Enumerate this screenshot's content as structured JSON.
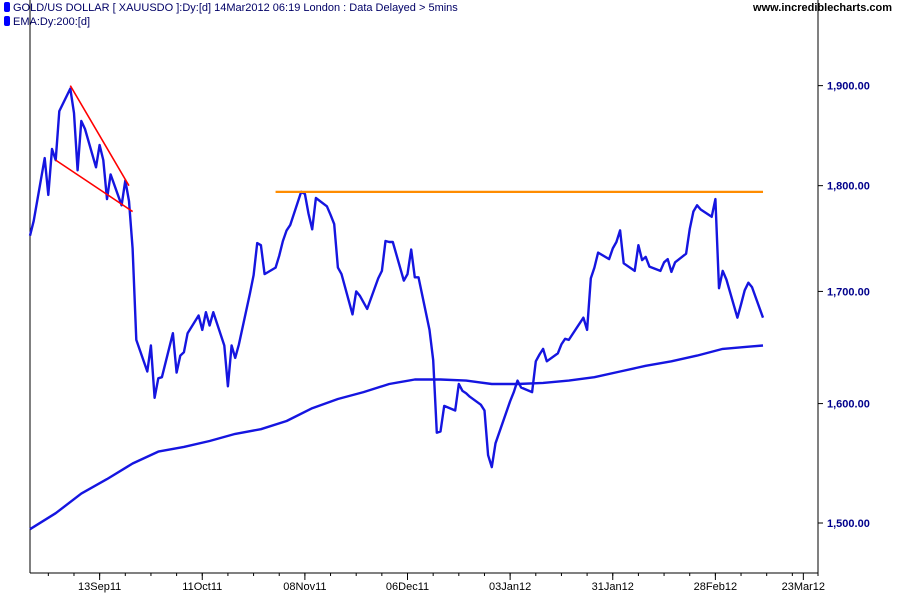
{
  "header": {
    "legend_price": "GOLD/US DOLLAR [ XAUUSDO ]:Dy:[d]  14Mar2012 06:19 London : Data Delayed > 5mins",
    "legend_ema": "EMA:Dy:200:[d]",
    "watermark": "www.incrediblecharts.com"
  },
  "colors": {
    "price": "#1515e0",
    "ema": "#1515e0",
    "trend": "#ff0000",
    "resistance": "#ff8c00",
    "axis": "#000000",
    "ylabel": "#00008b"
  },
  "chart_data": {
    "type": "line",
    "title": "",
    "xlabel": "",
    "ylabel": "",
    "grid": false,
    "legend": "top-left",
    "y_scale": "log",
    "x_range": [
      "2011-08-25",
      "2012-03-27"
    ],
    "ylim": [
      1460,
      1990
    ],
    "x_ticks": [
      {
        "date": "2011-09-13",
        "label": "13Sep11"
      },
      {
        "date": "2011-10-11",
        "label": "11Oct11"
      },
      {
        "date": "2011-11-08",
        "label": "08Nov11"
      },
      {
        "date": "2011-12-06",
        "label": "06Dec11"
      },
      {
        "date": "2012-01-03",
        "label": "03Jan12"
      },
      {
        "date": "2012-01-31",
        "label": "31Jan12"
      },
      {
        "date": "2012-02-28",
        "label": "28Feb12"
      },
      {
        "date": "2012-03-23",
        "label": "23Mar12"
      }
    ],
    "y_ticks": [
      {
        "value": 1500,
        "label": "1,500.00"
      },
      {
        "value": 1600,
        "label": "1,600.00"
      },
      {
        "value": 1700,
        "label": "1,700.00"
      },
      {
        "value": 1800,
        "label": "1,800.00"
      },
      {
        "value": 1900,
        "label": "1,900.00"
      }
    ],
    "series": [
      {
        "name": "GOLD/US DOLLAR [ XAUUSDO ]",
        "points": [
          [
            "2011-08-25",
            1752
          ],
          [
            "2011-08-26",
            1766
          ],
          [
            "2011-08-29",
            1827
          ],
          [
            "2011-08-30",
            1791
          ],
          [
            "2011-08-31",
            1836
          ],
          [
            "2011-09-01",
            1825
          ],
          [
            "2011-09-02",
            1874
          ],
          [
            "2011-09-05",
            1897
          ],
          [
            "2011-09-06",
            1872
          ],
          [
            "2011-09-07",
            1815
          ],
          [
            "2011-09-08",
            1864
          ],
          [
            "2011-09-09",
            1856
          ],
          [
            "2011-09-12",
            1818
          ],
          [
            "2011-09-13",
            1840
          ],
          [
            "2011-09-14",
            1825
          ],
          [
            "2011-09-15",
            1787
          ],
          [
            "2011-09-16",
            1811
          ],
          [
            "2011-09-19",
            1781
          ],
          [
            "2011-09-20",
            1805
          ],
          [
            "2011-09-21",
            1785
          ],
          [
            "2011-09-22",
            1740
          ],
          [
            "2011-09-23",
            1656
          ],
          [
            "2011-09-26",
            1628
          ],
          [
            "2011-09-27",
            1651
          ],
          [
            "2011-09-28",
            1605
          ],
          [
            "2011-09-29",
            1622
          ],
          [
            "2011-09-30",
            1623
          ],
          [
            "2011-10-03",
            1662
          ],
          [
            "2011-10-04",
            1627
          ],
          [
            "2011-10-05",
            1642
          ],
          [
            "2011-10-06",
            1645
          ],
          [
            "2011-10-07",
            1662
          ],
          [
            "2011-10-10",
            1678
          ],
          [
            "2011-10-11",
            1665
          ],
          [
            "2011-10-12",
            1681
          ],
          [
            "2011-10-13",
            1669
          ],
          [
            "2011-10-14",
            1681
          ],
          [
            "2011-10-17",
            1651
          ],
          [
            "2011-10-18",
            1615
          ],
          [
            "2011-10-19",
            1651
          ],
          [
            "2011-10-20",
            1640
          ],
          [
            "2011-10-21",
            1652
          ],
          [
            "2011-10-24",
            1698
          ],
          [
            "2011-10-25",
            1715
          ],
          [
            "2011-10-26",
            1745
          ],
          [
            "2011-10-27",
            1743
          ],
          [
            "2011-10-28",
            1716
          ],
          [
            "2011-10-31",
            1722
          ],
          [
            "2011-11-01",
            1733
          ],
          [
            "2011-11-02",
            1747
          ],
          [
            "2011-11-03",
            1757
          ],
          [
            "2011-11-04",
            1762
          ],
          [
            "2011-11-07",
            1794
          ],
          [
            "2011-11-08",
            1792
          ],
          [
            "2011-11-09",
            1773
          ],
          [
            "2011-11-10",
            1758
          ],
          [
            "2011-11-11",
            1788
          ],
          [
            "2011-11-14",
            1780
          ],
          [
            "2011-11-15",
            1772
          ],
          [
            "2011-11-16",
            1763
          ],
          [
            "2011-11-17",
            1722
          ],
          [
            "2011-11-18",
            1716
          ],
          [
            "2011-11-21",
            1679
          ],
          [
            "2011-11-22",
            1700
          ],
          [
            "2011-11-23",
            1696
          ],
          [
            "2011-11-24",
            1690
          ],
          [
            "2011-11-25",
            1684
          ],
          [
            "2011-11-28",
            1712
          ],
          [
            "2011-11-29",
            1719
          ],
          [
            "2011-11-30",
            1747
          ],
          [
            "2011-12-01",
            1746
          ],
          [
            "2011-12-02",
            1746
          ],
          [
            "2011-12-05",
            1710
          ],
          [
            "2011-12-06",
            1716
          ],
          [
            "2011-12-07",
            1739
          ],
          [
            "2011-12-08",
            1713
          ],
          [
            "2011-12-09",
            1713
          ],
          [
            "2011-12-12",
            1665
          ],
          [
            "2011-12-13",
            1638
          ],
          [
            "2011-12-14",
            1575
          ],
          [
            "2011-12-15",
            1576
          ],
          [
            "2011-12-16",
            1598
          ],
          [
            "2011-12-19",
            1594
          ],
          [
            "2011-12-20",
            1617
          ],
          [
            "2011-12-21",
            1611
          ],
          [
            "2011-12-22",
            1609
          ],
          [
            "2011-12-23",
            1606
          ],
          [
            "2011-12-26",
            1599
          ],
          [
            "2011-12-27",
            1594
          ],
          [
            "2011-12-28",
            1556
          ],
          [
            "2011-12-29",
            1546
          ],
          [
            "2011-12-30",
            1566
          ],
          [
            "2012-01-03",
            1602
          ],
          [
            "2012-01-04",
            1610
          ],
          [
            "2012-01-05",
            1620
          ],
          [
            "2012-01-06",
            1614
          ],
          [
            "2012-01-09",
            1610
          ],
          [
            "2012-01-10",
            1637
          ],
          [
            "2012-01-11",
            1643
          ],
          [
            "2012-01-12",
            1648
          ],
          [
            "2012-01-13",
            1637
          ],
          [
            "2012-01-16",
            1644
          ],
          [
            "2012-01-17",
            1652
          ],
          [
            "2012-01-18",
            1657
          ],
          [
            "2012-01-19",
            1656
          ],
          [
            "2012-01-20",
            1661
          ],
          [
            "2012-01-23",
            1676
          ],
          [
            "2012-01-24",
            1665
          ],
          [
            "2012-01-25",
            1712
          ],
          [
            "2012-01-26",
            1722
          ],
          [
            "2012-01-27",
            1736
          ],
          [
            "2012-01-30",
            1730
          ],
          [
            "2012-01-31",
            1740
          ],
          [
            "2012-02-01",
            1746
          ],
          [
            "2012-02-02",
            1757
          ],
          [
            "2012-02-03",
            1726
          ],
          [
            "2012-02-06",
            1719
          ],
          [
            "2012-02-07",
            1743
          ],
          [
            "2012-02-08",
            1729
          ],
          [
            "2012-02-09",
            1732
          ],
          [
            "2012-02-10",
            1723
          ],
          [
            "2012-02-13",
            1719
          ],
          [
            "2012-02-14",
            1727
          ],
          [
            "2012-02-15",
            1730
          ],
          [
            "2012-02-16",
            1718
          ],
          [
            "2012-02-17",
            1727
          ],
          [
            "2012-02-20",
            1735
          ],
          [
            "2012-02-21",
            1758
          ],
          [
            "2012-02-22",
            1775
          ],
          [
            "2012-02-23",
            1781
          ],
          [
            "2012-02-24",
            1777
          ],
          [
            "2012-02-27",
            1770
          ],
          [
            "2012-02-28",
            1787
          ],
          [
            "2012-02-29",
            1703
          ],
          [
            "2012-03-01",
            1719
          ],
          [
            "2012-03-02",
            1711
          ],
          [
            "2012-03-05",
            1676
          ],
          [
            "2012-03-06",
            1688
          ],
          [
            "2012-03-07",
            1701
          ],
          [
            "2012-03-08",
            1708
          ],
          [
            "2012-03-09",
            1704
          ],
          [
            "2012-03-12",
            1676
          ]
        ]
      },
      {
        "name": "EMA:Dy:200",
        "points": [
          [
            "2011-08-25",
            1495
          ],
          [
            "2011-09-01",
            1508
          ],
          [
            "2011-09-08",
            1524
          ],
          [
            "2011-09-15",
            1536
          ],
          [
            "2011-09-22",
            1549
          ],
          [
            "2011-09-29",
            1559
          ],
          [
            "2011-10-06",
            1563
          ],
          [
            "2011-10-13",
            1568
          ],
          [
            "2011-10-20",
            1574
          ],
          [
            "2011-10-27",
            1578
          ],
          [
            "2011-11-03",
            1585
          ],
          [
            "2011-11-10",
            1596
          ],
          [
            "2011-11-17",
            1604
          ],
          [
            "2011-11-24",
            1610
          ],
          [
            "2011-12-01",
            1617
          ],
          [
            "2011-12-08",
            1621
          ],
          [
            "2011-12-15",
            1621
          ],
          [
            "2011-12-22",
            1620
          ],
          [
            "2011-12-29",
            1617
          ],
          [
            "2012-01-05",
            1617
          ],
          [
            "2012-01-12",
            1618
          ],
          [
            "2012-01-19",
            1620
          ],
          [
            "2012-01-26",
            1623
          ],
          [
            "2012-02-02",
            1628
          ],
          [
            "2012-02-09",
            1633
          ],
          [
            "2012-02-16",
            1637
          ],
          [
            "2012-02-23",
            1642
          ],
          [
            "2012-03-01",
            1648
          ],
          [
            "2012-03-08",
            1650
          ],
          [
            "2012-03-12",
            1651
          ]
        ]
      }
    ],
    "annotations": [
      {
        "type": "trendline",
        "color": "#ff0000",
        "from": [
          "2011-09-05",
          1900
        ],
        "to": [
          "2011-09-21",
          1800
        ]
      },
      {
        "type": "trendline",
        "color": "#ff0000",
        "from": [
          "2011-09-01",
          1825
        ],
        "to": [
          "2011-09-22",
          1775
        ]
      },
      {
        "type": "horizontal",
        "color": "#ff8c00",
        "value": 1794,
        "from": "2011-10-31",
        "to": "2012-03-12"
      }
    ]
  }
}
